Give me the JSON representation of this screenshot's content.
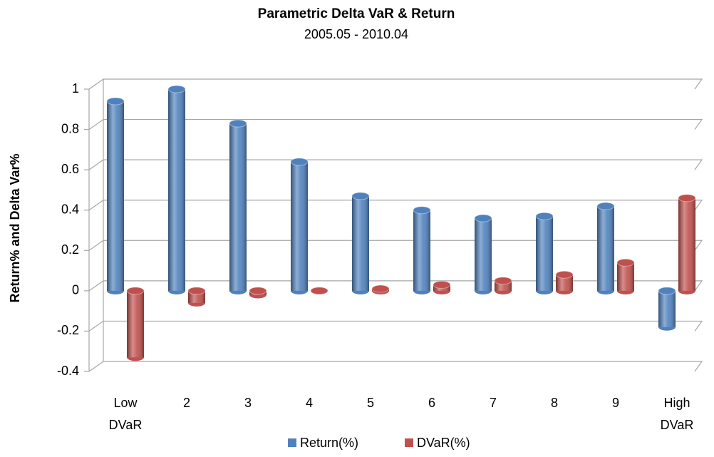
{
  "chart_data": {
    "type": "bar",
    "title": "Parametric Delta VaR & Return",
    "subtitle": "2005.05 - 2010.04",
    "y_label": "Return% and Delta Var%",
    "categories": [
      "Low DVaR",
      "2",
      "3",
      "4",
      "5",
      "6",
      "7",
      "8",
      "9",
      "High DVaR"
    ],
    "series": [
      {
        "name": "Return(%)",
        "color": "#4f81bd",
        "values": [
          0.94,
          1.0,
          0.83,
          0.64,
          0.47,
          0.4,
          0.36,
          0.37,
          0.42,
          -0.18
        ]
      },
      {
        "name": "DVaR(%)",
        "color": "#c0504d",
        "values": [
          -0.33,
          -0.06,
          -0.02,
          0.0,
          0.01,
          0.03,
          0.05,
          0.08,
          0.14,
          0.46
        ]
      }
    ],
    "ylim": [
      -0.4,
      1
    ],
    "yticks": [
      -0.4,
      -0.2,
      0,
      0.2,
      0.4,
      0.6,
      0.8,
      1
    ],
    "grid": true
  }
}
